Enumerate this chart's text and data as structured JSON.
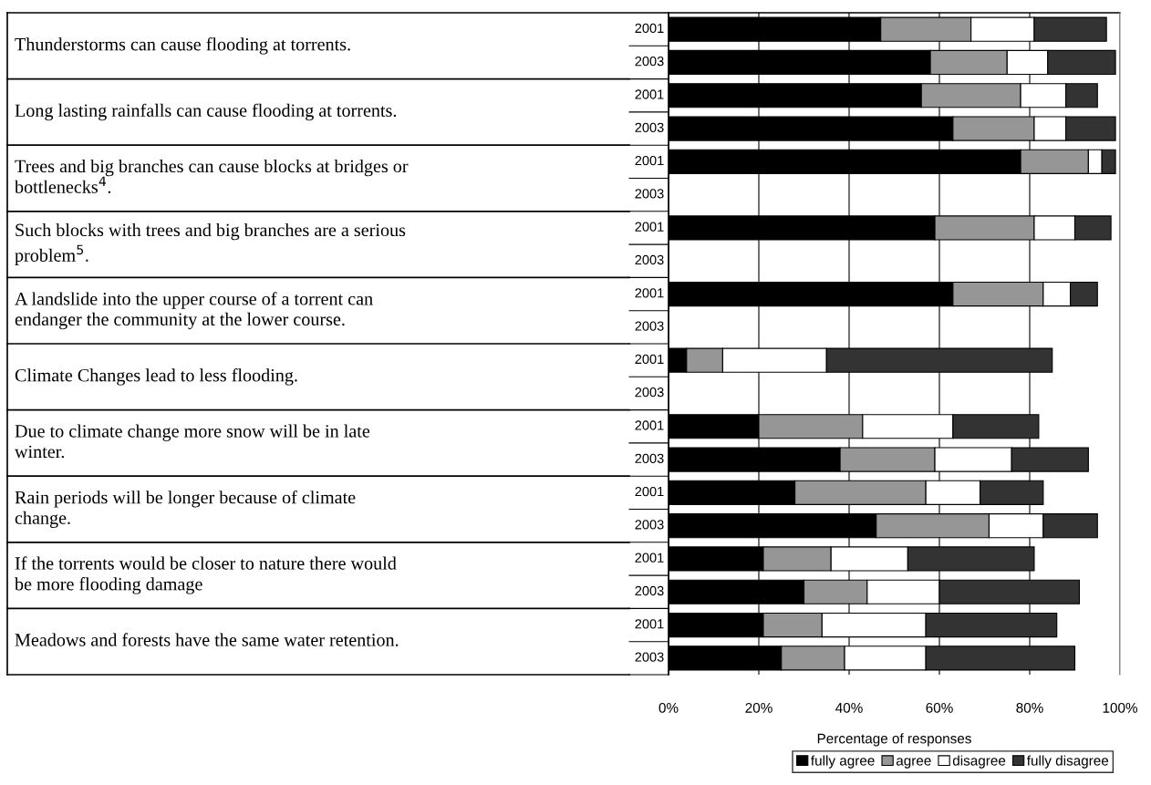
{
  "chart_data": {
    "type": "bar",
    "orientation": "horizontal",
    "stacked": true,
    "categories": [
      "2001",
      "2003",
      "2001",
      "2003",
      "2001",
      "2003",
      "2001",
      "2003",
      "2001",
      "2003",
      "2001",
      "2003",
      "2001",
      "2003",
      "2001",
      "2003",
      "2001",
      "2003",
      "2001",
      "2003"
    ],
    "series": [
      {
        "name": "fully agree",
        "color": "#000000",
        "values": [
          47,
          58,
          56,
          63,
          78,
          null,
          59,
          null,
          63,
          null,
          4,
          null,
          20,
          38,
          28,
          46,
          21,
          30,
          21,
          25
        ]
      },
      {
        "name": "agree",
        "color": "#969696",
        "values": [
          20,
          17,
          22,
          18,
          15,
          null,
          22,
          null,
          20,
          null,
          8,
          null,
          23,
          21,
          29,
          25,
          15,
          14,
          13,
          14
        ]
      },
      {
        "name": "disagree",
        "color": "#ffffff",
        "values": [
          14,
          9,
          10,
          7,
          3,
          null,
          9,
          null,
          6,
          null,
          23,
          null,
          20,
          17,
          12,
          12,
          17,
          16,
          23,
          18
        ]
      },
      {
        "name": "fully disagree",
        "color": "#333333",
        "values": [
          16,
          15,
          7,
          11,
          3,
          null,
          8,
          null,
          6,
          null,
          50,
          null,
          19,
          17,
          14,
          12,
          28,
          31,
          29,
          33
        ]
      }
    ],
    "xlim": [
      0,
      100
    ],
    "xticks": [
      {
        "value": 0,
        "label": "0%"
      },
      {
        "value": 20,
        "label": "20%"
      },
      {
        "value": 40,
        "label": "40%"
      },
      {
        "value": 60,
        "label": "60%"
      },
      {
        "value": 80,
        "label": "80%"
      },
      {
        "value": 100,
        "label": "100%"
      }
    ],
    "xlabel": "Percentage of responses",
    "grid": "x",
    "legend": "bottom",
    "annotations": [
      "Thunderstorms can cause flooding at torrents.",
      "Long lasting rainfalls can cause flooding at torrents.",
      "Trees and big branches can cause blocks at bridges or\nbottlenecks$^{4}$.",
      "Such blocks with trees and big branches are a serious\nproblem$^{5}$.",
      "A landslide into the upper course of a torrent can\nendanger the community at the lower course.",
      "Climate Changes lead to less flooding.",
      "Due to climate change more snow will be in late\nwinter.",
      "Rain periods will be longer because of climate\nchange.",
      "If the torrents would be closer to nature there would\nbe more flooding damage",
      "Meadows and forests have the same water retention."
    ]
  }
}
